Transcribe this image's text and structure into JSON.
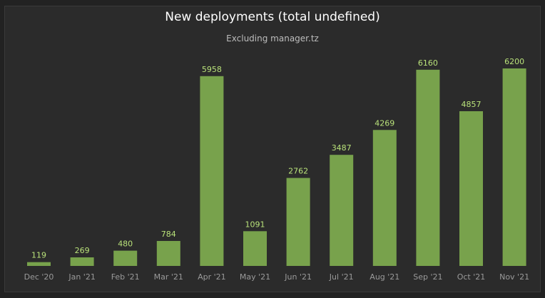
{
  "chart_data": {
    "type": "bar",
    "title": "New deployments (total undefined)",
    "subtitle": "Excluding manager.tz",
    "categories": [
      "Dec '20",
      "Jan '21",
      "Feb '21",
      "Mar '21",
      "Apr '21",
      "May '21",
      "Jun '21",
      "Jul '21",
      "Aug '21",
      "Sep '21",
      "Oct '21",
      "Nov '21"
    ],
    "values": [
      119,
      269,
      480,
      784,
      5958,
      1091,
      2762,
      3487,
      4269,
      6160,
      4857,
      6200
    ],
    "ylim": [
      0,
      6200
    ],
    "grid": false,
    "legend": "none",
    "colors": {
      "bar": "#78a24c",
      "label": "#b9e27a",
      "tick": "#9a9a9a",
      "background": "#2b2b2b"
    }
  }
}
